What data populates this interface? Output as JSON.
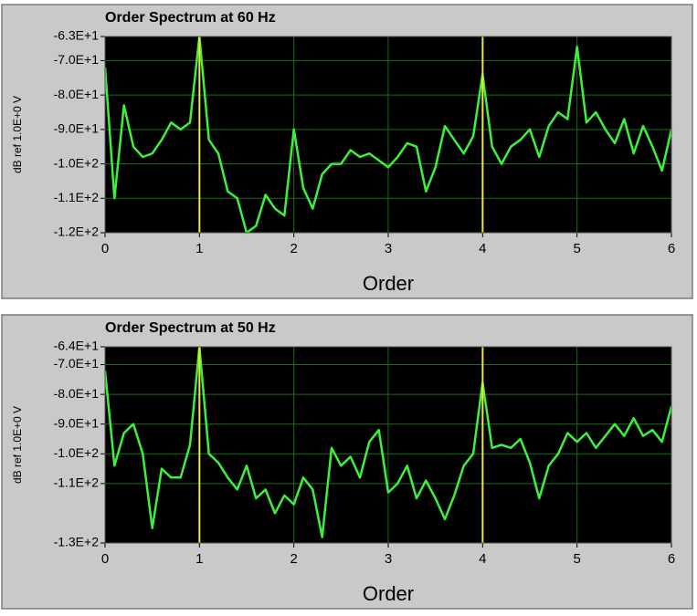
{
  "chart_data": [
    {
      "type": "line",
      "title": "Order Spectrum at 60 Hz",
      "y_label": "dB ref 1.0E+0 V",
      "x_label": "Order",
      "x": [
        0,
        0.1,
        0.2,
        0.3,
        0.4,
        0.5,
        0.6,
        0.7,
        0.8,
        0.9,
        1,
        1.1,
        1.2,
        1.3,
        1.4,
        1.5,
        1.6,
        1.7,
        1.8,
        1.9,
        2,
        2.1,
        2.2,
        2.3,
        2.4,
        2.5,
        2.6,
        2.7,
        2.8,
        2.9,
        3,
        3.1,
        3.2,
        3.3,
        3.4,
        3.5,
        3.6,
        3.7,
        3.8,
        3.9,
        4,
        4.1,
        4.2,
        4.3,
        4.4,
        4.5,
        4.6,
        4.7,
        4.8,
        4.9,
        5,
        5.1,
        5.2,
        5.3,
        5.4,
        5.5,
        5.6,
        5.7,
        5.8,
        5.9,
        6
      ],
      "values": [
        -72,
        -110,
        -83,
        -95,
        -98,
        -97,
        -93,
        -88,
        -90,
        -88,
        -63,
        -93,
        -97,
        -108,
        -110,
        -120,
        -118,
        -109,
        -113,
        -115,
        -90,
        -107,
        -113,
        -103,
        -100,
        -100,
        -96,
        -98,
        -97,
        -99,
        -101,
        -98,
        -94,
        -95,
        -108,
        -101,
        -89,
        -93,
        -97,
        -92,
        -74,
        -95,
        -100,
        -95,
        -93,
        -90,
        -98,
        -89,
        -85,
        -87,
        -66,
        -88,
        -85,
        -90,
        -94,
        -87,
        -97,
        -89,
        -95,
        -102,
        -90
      ],
      "color": "#3cf03c",
      "xlim": [
        0,
        6
      ],
      "xticks": [
        0,
        1,
        2,
        3,
        4,
        5,
        6
      ],
      "ylim": [
        -120,
        -63
      ],
      "yticks": [
        {
          "value": -63,
          "label": "-6.3E+1"
        },
        {
          "value": -70,
          "label": "-7.0E+1"
        },
        {
          "value": -80,
          "label": "-8.0E+1"
        },
        {
          "value": -90,
          "label": "-9.0E+1"
        },
        {
          "value": -100,
          "label": "-1.0E+2"
        },
        {
          "value": -110,
          "label": "-1.1E+2"
        },
        {
          "value": -120,
          "label": "-1.2E+2"
        }
      ],
      "grid": true,
      "cursors": [
        1,
        4
      ],
      "cursor_color": "#f0e82c"
    },
    {
      "type": "line",
      "title": "Order Spectrum at 50 Hz",
      "y_label": "dB ref 1.0E+0 V",
      "x_label": "Order",
      "x": [
        0,
        0.1,
        0.2,
        0.3,
        0.4,
        0.5,
        0.6,
        0.7,
        0.8,
        0.9,
        1,
        1.1,
        1.2,
        1.3,
        1.4,
        1.5,
        1.6,
        1.7,
        1.8,
        1.9,
        2,
        2.1,
        2.2,
        2.3,
        2.4,
        2.5,
        2.6,
        2.7,
        2.8,
        2.9,
        3,
        3.1,
        3.2,
        3.3,
        3.4,
        3.5,
        3.6,
        3.7,
        3.8,
        3.9,
        4,
        4.1,
        4.2,
        4.3,
        4.4,
        4.5,
        4.6,
        4.7,
        4.8,
        4.9,
        5,
        5.1,
        5.2,
        5.3,
        5.4,
        5.5,
        5.6,
        5.7,
        5.8,
        5.9,
        6
      ],
      "values": [
        -72,
        -104,
        -93,
        -90,
        -100,
        -125,
        -105,
        -108,
        -108,
        -97,
        -64,
        -100,
        -103,
        -108,
        -112,
        -104,
        -115,
        -112,
        -120,
        -114,
        -117,
        -108,
        -112,
        -128,
        -98,
        -104,
        -101,
        -108,
        -96,
        -92,
        -113,
        -110,
        -104,
        -115,
        -109,
        -115,
        -122,
        -114,
        -104,
        -100,
        -76,
        -98,
        -97,
        -98,
        -95,
        -103,
        -115,
        -104,
        -100,
        -93,
        -96,
        -93,
        -98,
        -94,
        -90,
        -94,
        -88,
        -94,
        -92,
        -96,
        -84
      ],
      "color": "#3cf03c",
      "xlim": [
        0,
        6
      ],
      "xticks": [
        0,
        1,
        2,
        3,
        4,
        5,
        6
      ],
      "ylim": [
        -130,
        -64
      ],
      "yticks": [
        {
          "value": -64,
          "label": "-6.4E+1"
        },
        {
          "value": -70,
          "label": "-7.0E+1"
        },
        {
          "value": -80,
          "label": "-8.0E+1"
        },
        {
          "value": -90,
          "label": "-9.0E+1"
        },
        {
          "value": -100,
          "label": "-1.0E+2"
        },
        {
          "value": -110,
          "label": "-1.1E+2"
        },
        {
          "value": -130,
          "label": "-1.3E+2"
        }
      ],
      "grid": true,
      "cursors": [
        1,
        4
      ],
      "cursor_color": "#f0e82c"
    }
  ]
}
